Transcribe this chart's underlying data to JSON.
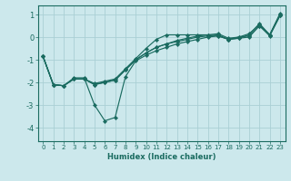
{
  "xlabel": "Humidex (Indice chaleur)",
  "bg_color": "#cce8ec",
  "grid_color": "#aacfd5",
  "line_color": "#1a6b60",
  "xlim": [
    -0.5,
    23.5
  ],
  "ylim": [
    -4.6,
    1.4
  ],
  "yticks": [
    -4,
    -3,
    -2,
    -1,
    0,
    1
  ],
  "xticks": [
    0,
    1,
    2,
    3,
    4,
    5,
    6,
    7,
    8,
    9,
    10,
    11,
    12,
    13,
    14,
    15,
    16,
    17,
    18,
    19,
    20,
    21,
    22,
    23
  ],
  "series": [
    {
      "x": [
        0,
        1,
        2,
        3,
        4,
        5,
        6,
        7,
        8,
        9,
        10,
        11,
        12,
        13,
        14,
        15,
        16,
        17,
        18,
        19,
        20,
        21,
        22,
        23
      ],
      "y": [
        -0.85,
        -2.1,
        -2.15,
        -1.8,
        -1.8,
        -3.0,
        -3.7,
        -3.55,
        -1.75,
        -1.05,
        -0.8,
        -0.6,
        -0.45,
        -0.3,
        -0.2,
        -0.1,
        0.0,
        0.05,
        -0.1,
        -0.05,
        0.1,
        0.6,
        0.1,
        1.05
      ]
    },
    {
      "x": [
        0,
        1,
        2,
        3,
        4,
        5,
        6,
        7,
        8,
        9,
        10,
        11,
        12,
        13,
        14,
        15,
        16,
        17,
        18,
        19,
        20,
        21,
        22,
        23
      ],
      "y": [
        -0.85,
        -2.1,
        -2.15,
        -1.85,
        -1.85,
        -2.05,
        -1.95,
        -1.85,
        -1.4,
        -0.95,
        -0.5,
        -0.1,
        0.1,
        0.1,
        0.1,
        0.1,
        0.1,
        0.05,
        -0.1,
        0.0,
        0.15,
        0.55,
        0.1,
        1.0
      ]
    },
    {
      "x": [
        0,
        1,
        2,
        3,
        4,
        5,
        6,
        7,
        8,
        9,
        10,
        11,
        12,
        13,
        14,
        15,
        16,
        17,
        18,
        19,
        20,
        21,
        22,
        23
      ],
      "y": [
        -0.85,
        -2.1,
        -2.15,
        -1.85,
        -1.85,
        -2.1,
        -2.0,
        -1.9,
        -1.45,
        -1.0,
        -0.7,
        -0.45,
        -0.3,
        -0.15,
        -0.05,
        0.05,
        0.1,
        0.15,
        -0.05,
        0.0,
        0.05,
        0.5,
        0.1,
        0.95
      ]
    },
    {
      "x": [
        0,
        1,
        2,
        3,
        4,
        5,
        6,
        7,
        8,
        9,
        10,
        11,
        12,
        13,
        14,
        15,
        16,
        17,
        18,
        19,
        20,
        21,
        22,
        23
      ],
      "y": [
        -0.85,
        -2.1,
        -2.15,
        -1.85,
        -1.85,
        -2.1,
        -2.0,
        -1.9,
        -1.45,
        -1.0,
        -0.7,
        -0.45,
        -0.3,
        -0.2,
        -0.1,
        0.0,
        0.05,
        0.1,
        -0.1,
        -0.05,
        0.0,
        0.5,
        0.05,
        0.95
      ]
    }
  ]
}
